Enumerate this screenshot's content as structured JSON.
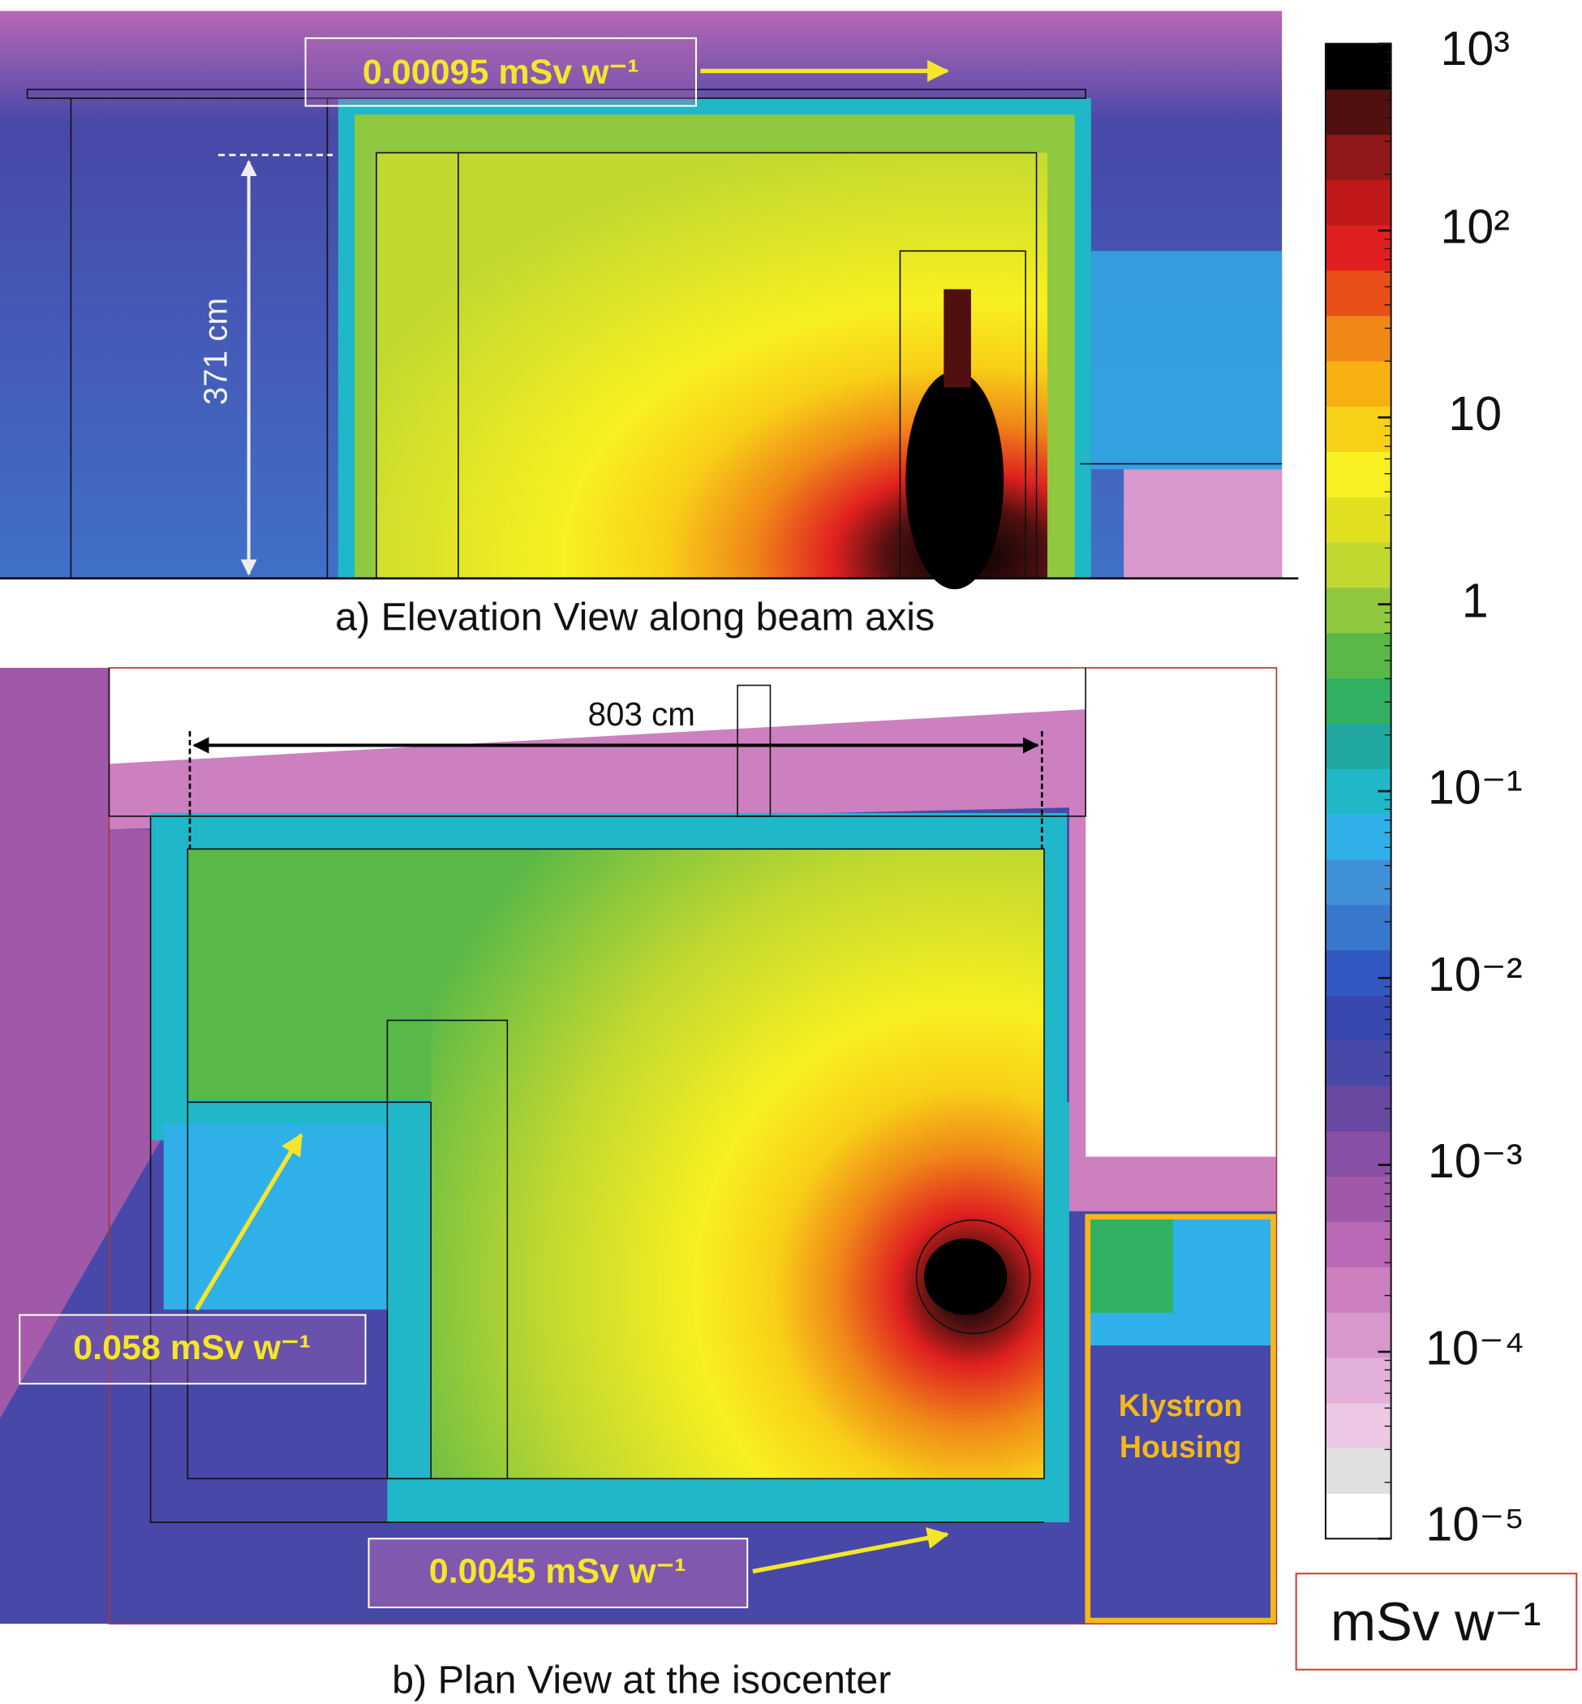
{
  "panel_a": {
    "caption": "a) Elevation View along beam axis",
    "annotation": "0.00095 mSv w⁻¹",
    "dimension": "371 cm"
  },
  "panel_b": {
    "caption": "b) Plan View at the isocenter",
    "annotations": [
      "0.058 mSv w⁻¹",
      "0.0045 mSv w⁻¹"
    ],
    "dimension": "803 cm",
    "klystron_label": [
      "Klystron",
      "Housing"
    ]
  },
  "colorbar": {
    "type": "colorbar",
    "unit": "mSv w⁻¹",
    "log_scale": true,
    "lim": [
      1e-05,
      1000
    ],
    "ticks": [
      {
        "value": 1000,
        "label": "10³"
      },
      {
        "value": 100,
        "label": "10²"
      },
      10,
      1,
      {
        "value": 0.1,
        "label": "10⁻¹"
      },
      {
        "value": 0.01,
        "label": "10⁻²"
      },
      {
        "value": 0.001,
        "label": "10⁻³"
      },
      {
        "value": 0.0001,
        "label": "10⁻⁴"
      },
      {
        "value": 1e-05,
        "label": "10⁻⁵"
      }
    ],
    "colors": [
      "#ffffff",
      "#e0e0e0",
      "#ecc8e4",
      "#e2b0d8",
      "#d898cc",
      "#cc80c0",
      "#b868b4",
      "#a058a8",
      "#8850a4",
      "#6848a0",
      "#4848a8",
      "#3848b0",
      "#3058c0",
      "#3878cc",
      "#4090d8",
      "#30b0e8",
      "#20b8c8",
      "#20a8a0",
      "#30b060",
      "#58b848",
      "#90c840",
      "#c0d830",
      "#e0e020",
      "#f8f020",
      "#f8d018",
      "#f8b010",
      "#f08818",
      "#e85018",
      "#e02020",
      "#c01818",
      "#901818",
      "#501010",
      "#000000"
    ]
  }
}
